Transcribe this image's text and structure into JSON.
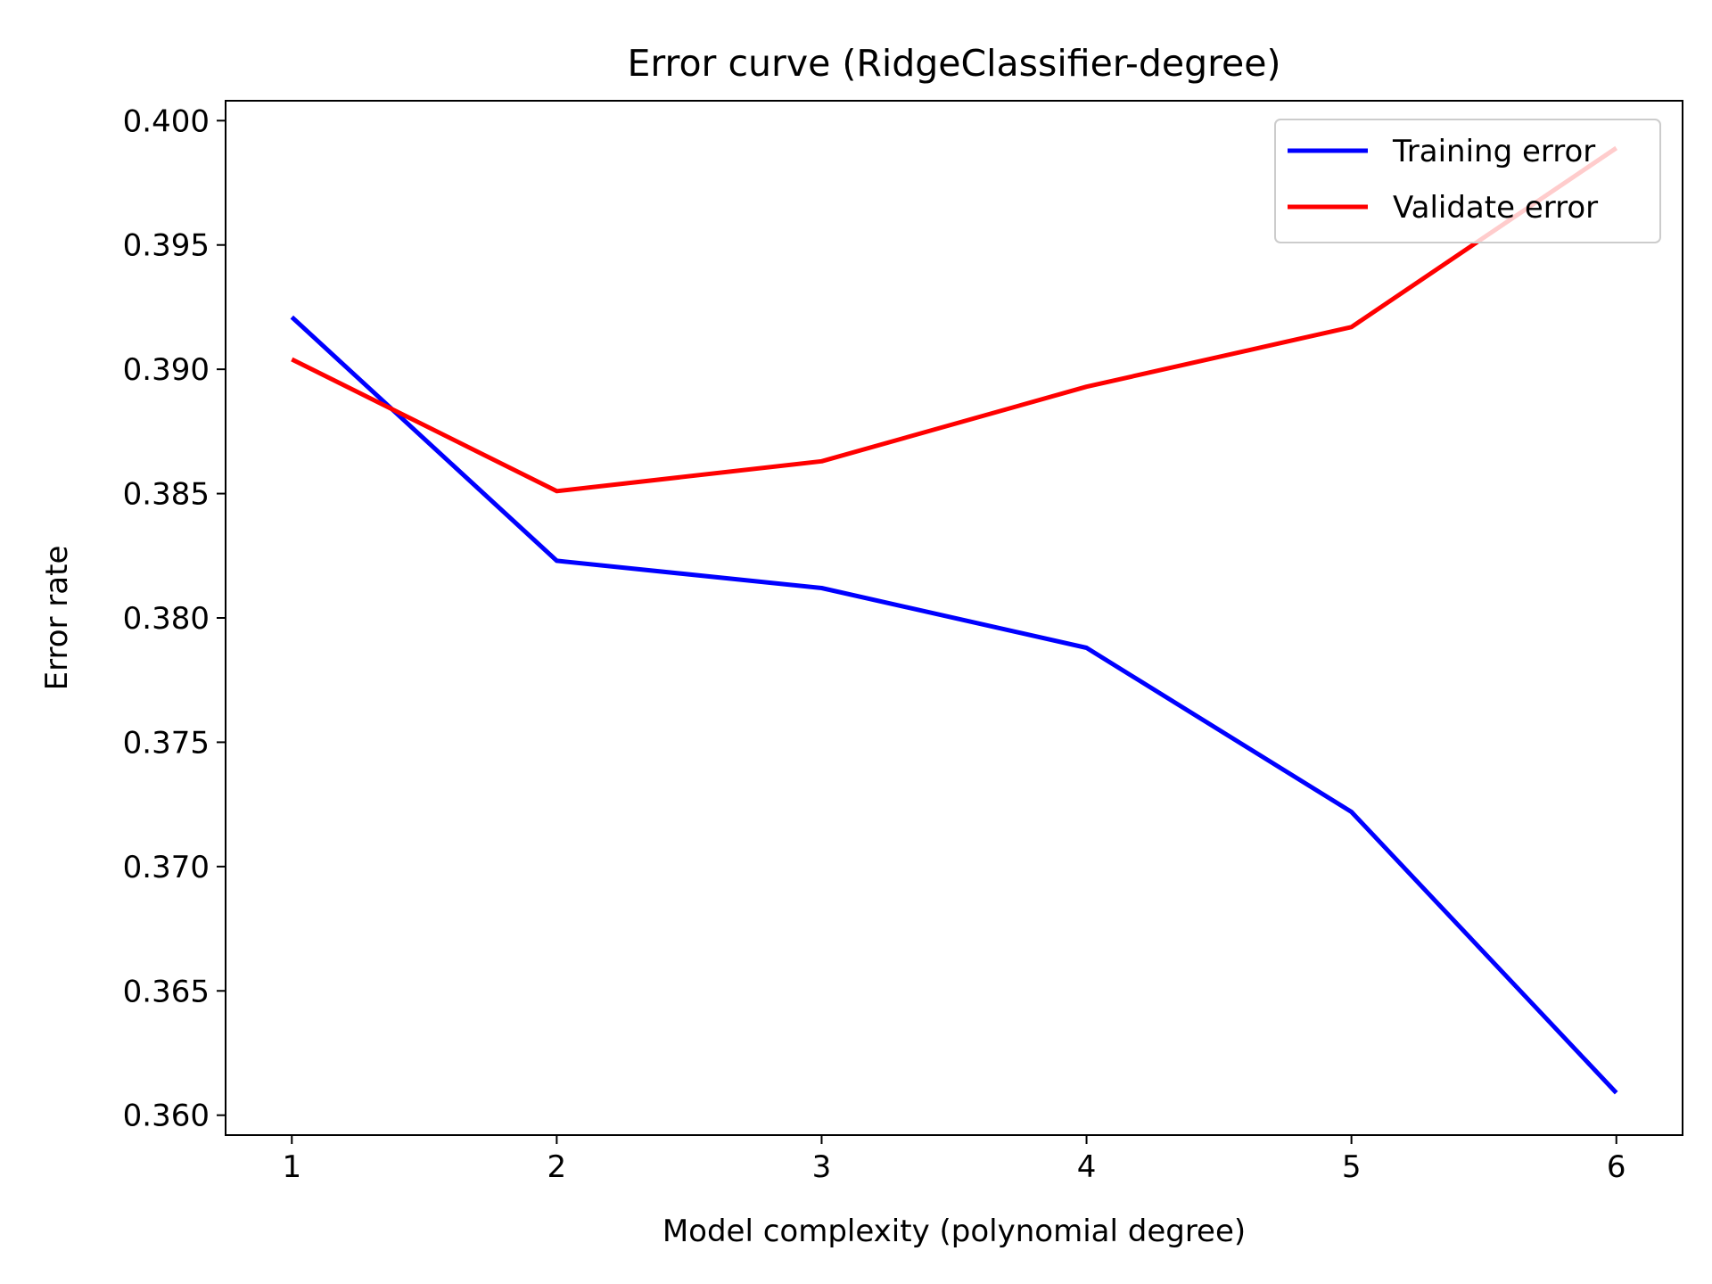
{
  "chart_data": {
    "type": "line",
    "title": "Error curve (RidgeClassifier-degree)",
    "xlabel": "Model complexity (polynomial degree)",
    "ylabel": "Error rate",
    "x": [
      1,
      2,
      3,
      4,
      5,
      6
    ],
    "xlim": [
      0.75,
      6.25
    ],
    "ylim": [
      0.3592,
      0.4008
    ],
    "xticks": [
      "1",
      "2",
      "3",
      "4",
      "5",
      "6"
    ],
    "yticks": [
      "0.360",
      "0.365",
      "0.370",
      "0.375",
      "0.380",
      "0.385",
      "0.390",
      "0.395",
      "0.400"
    ],
    "grid": false,
    "legend_position": "top-right",
    "series": [
      {
        "name": "Training error",
        "color": "#0000ff",
        "values": [
          0.3921,
          0.3823,
          0.3812,
          0.3788,
          0.3722,
          0.3609
        ]
      },
      {
        "name": "Validate error",
        "color": "#ff0000",
        "values": [
          0.3904,
          0.3851,
          0.3863,
          0.3893,
          0.3917,
          0.3989
        ]
      }
    ]
  }
}
